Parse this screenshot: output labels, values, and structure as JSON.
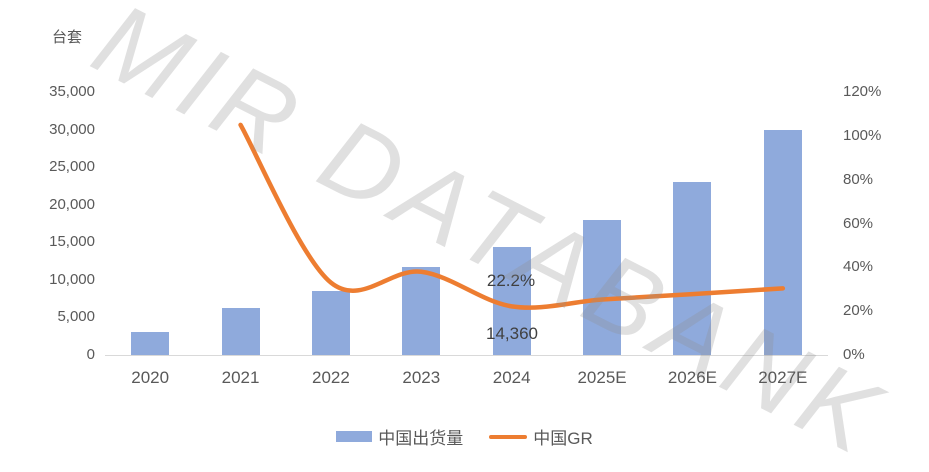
{
  "colors": {
    "bar": "#8FAADC",
    "line": "#ED7D31",
    "axis_text": "#595959",
    "data_label_text": "#404040",
    "axis_line": "#D9D9D9",
    "watermark": "rgba(145,145,145,0.28)",
    "background": "#FFFFFF"
  },
  "chart_data": {
    "type": "combo",
    "categories": [
      "2020",
      "2021",
      "2022",
      "2023",
      "2024",
      "2025E",
      "2026E",
      "2027E"
    ],
    "series": [
      {
        "name": "中国出货量",
        "type": "bar",
        "axis": "left",
        "color": "#8FAADC",
        "values": [
          3000,
          6200,
          8500,
          11750,
          14360,
          18000,
          23000,
          30000
        ]
      },
      {
        "name": "中国GR",
        "type": "line",
        "axis": "right",
        "color": "#ED7D31",
        "unit": "%",
        "values": [
          null,
          105,
          33,
          38,
          22.2,
          25.3,
          27.8,
          30.4
        ]
      }
    ],
    "left_axis": {
      "title": "台套",
      "ticks": [
        "35,000",
        "30,000",
        "25,000",
        "20,000",
        "15,000",
        "10,000",
        "5,000",
        "0"
      ],
      "ylim": [
        0,
        35000
      ]
    },
    "right_axis": {
      "ticks": [
        "120%",
        "100%",
        "80%",
        "60%",
        "40%",
        "20%",
        "0%"
      ],
      "ylim": [
        0,
        120
      ]
    },
    "data_labels": [
      {
        "series": "中国GR",
        "category": "2024",
        "text": "22.2%"
      },
      {
        "series": "中国出货量",
        "category": "2024",
        "text": "14,360"
      }
    ],
    "legend_position": "bottom",
    "grid": false,
    "smooth_line": true,
    "watermark": "MIR DATABANK"
  }
}
